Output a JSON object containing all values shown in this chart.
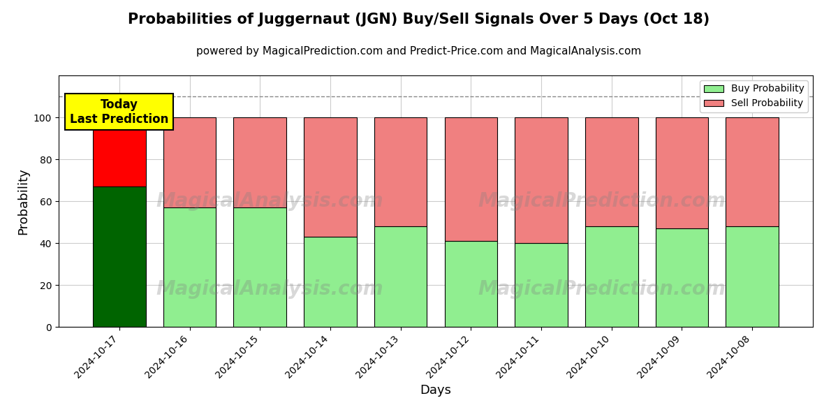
{
  "title": "Probabilities of Juggernaut (JGN) Buy/Sell Signals Over 5 Days (Oct 18)",
  "subtitle": "powered by MagicalPrediction.com and Predict-Price.com and MagicalAnalysis.com",
  "xlabel": "Days",
  "ylabel": "Probability",
  "dates": [
    "2024-10-17",
    "2024-10-16",
    "2024-10-15",
    "2024-10-14",
    "2024-10-13",
    "2024-10-12",
    "2024-10-11",
    "2024-10-10",
    "2024-10-09",
    "2024-10-08"
  ],
  "buy_probs": [
    67,
    57,
    57,
    43,
    48,
    41,
    40,
    48,
    47,
    48
  ],
  "sell_probs": [
    33,
    43,
    43,
    57,
    52,
    59,
    60,
    52,
    53,
    52
  ],
  "buy_color_today": "#006400",
  "sell_color_today": "#FF0000",
  "buy_color_rest": "#90EE90",
  "sell_color_rest": "#F08080",
  "bar_edge_color": "#000000",
  "bar_width": 0.75,
  "ylim": [
    0,
    120
  ],
  "yticks": [
    0,
    20,
    40,
    60,
    80,
    100
  ],
  "dashed_line_y": 110,
  "dashed_line_color": "#888888",
  "today_label_text": "Today\nLast Prediction",
  "today_box_color": "#FFFF00",
  "legend_buy_label": "Buy Probability",
  "legend_sell_label": "Sell Probability",
  "grid_color": "#cccccc",
  "background_color": "#ffffff",
  "title_fontsize": 15,
  "subtitle_fontsize": 11,
  "axis_label_fontsize": 13,
  "tick_fontsize": 10,
  "watermark1": "MagicalAnalysis.com",
  "watermark2": "MagicalPrediction.com"
}
